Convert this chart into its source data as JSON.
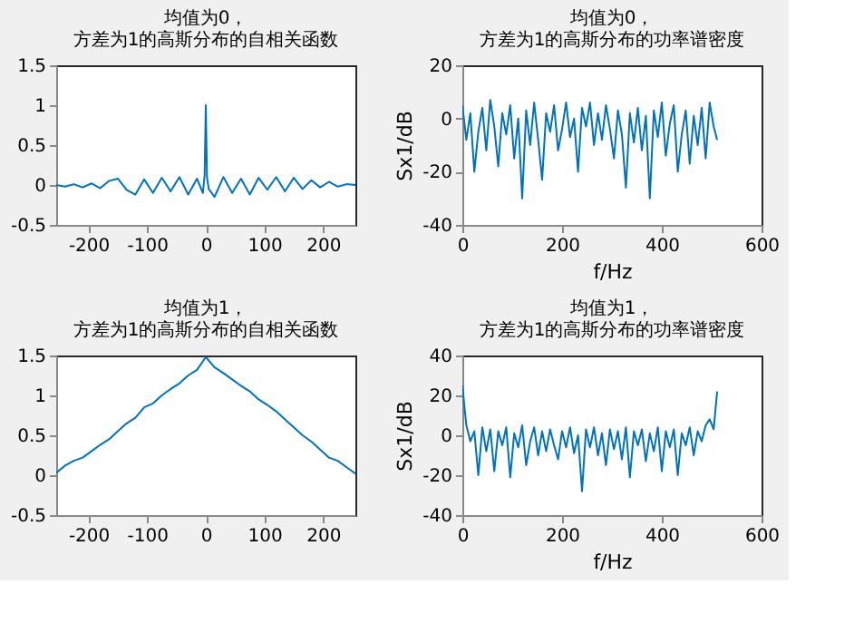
{
  "chart_data": [
    {
      "type": "line",
      "title": "均值为0，方差为1的高斯分布的自相关函数",
      "xlim": [
        -255,
        255
      ],
      "xticks": [
        -200,
        -100,
        0,
        100,
        200
      ],
      "ylim": [
        -0.5,
        1.5
      ],
      "yticks": [
        -0.5,
        0,
        0.5,
        1,
        1.5
      ],
      "grid": false,
      "x": [
        -255,
        -240,
        -225,
        -210,
        -195,
        -180,
        -165,
        -150,
        -135,
        -120,
        -105,
        -90,
        -75,
        -60,
        -45,
        -30,
        -15,
        -5,
        -2,
        0,
        2,
        5,
        15,
        30,
        45,
        60,
        75,
        90,
        105,
        120,
        135,
        150,
        165,
        180,
        195,
        210,
        225,
        240,
        255
      ],
      "series": [
        {
          "color": "#0072bd",
          "values": [
            0,
            -0.02,
            0.01,
            -0.03,
            0.02,
            -0.04,
            0.05,
            0.08,
            -0.06,
            -0.12,
            0.07,
            -0.1,
            0.09,
            -0.08,
            0.1,
            -0.12,
            0.08,
            -0.1,
            0.12,
            1.0,
            0.1,
            -0.05,
            -0.15,
            0.1,
            -0.1,
            0.08,
            -0.12,
            0.09,
            -0.06,
            0.1,
            -0.08,
            0.09,
            -0.05,
            0.06,
            -0.03,
            0.04,
            -0.02,
            0.01,
            0
          ]
        }
      ]
    },
    {
      "type": "line",
      "title": "均值为0，方差为1的高斯分布的功率谱密度",
      "xlabel": "f/Hz",
      "ylabel": "Sx1/dB",
      "xlim": [
        0,
        600
      ],
      "xticks": [
        0,
        200,
        400,
        600
      ],
      "ylim": [
        -40,
        20
      ],
      "yticks": [
        -40,
        -20,
        0,
        20
      ],
      "grid": false,
      "x": [
        0,
        8,
        16,
        24,
        32,
        40,
        48,
        56,
        64,
        72,
        80,
        88,
        96,
        104,
        112,
        120,
        128,
        136,
        144,
        152,
        160,
        168,
        176,
        184,
        192,
        200,
        208,
        216,
        224,
        232,
        240,
        248,
        256,
        264,
        272,
        280,
        288,
        296,
        304,
        312,
        320,
        328,
        336,
        344,
        352,
        360,
        368,
        376,
        384,
        392,
        400,
        408,
        416,
        424,
        432,
        440,
        448,
        456,
        464,
        472,
        480,
        488,
        496,
        504,
        511
      ],
      "series": [
        {
          "color": "#0072bd",
          "values": [
            5,
            -8,
            2,
            -20,
            -5,
            4,
            -12,
            7,
            -3,
            -18,
            2,
            -6,
            5,
            -15,
            0,
            -30,
            3,
            -10,
            6,
            -8,
            -23,
            2,
            -5,
            5,
            -12,
            -4,
            6,
            -7,
            0,
            -20,
            4,
            -3,
            6,
            -10,
            2,
            -8,
            5,
            -4,
            -15,
            3,
            -6,
            -26,
            2,
            -9,
            4,
            -12,
            1,
            -30,
            3,
            -7,
            6,
            -14,
            -2,
            5,
            -20,
            -6,
            3,
            -17,
            1,
            -10,
            4,
            -15,
            6,
            -3,
            -8
          ]
        }
      ]
    },
    {
      "type": "line",
      "title": "均值为1，方差为1的高斯分布的自相关函数",
      "xlim": [
        -255,
        255
      ],
      "xticks": [
        -200,
        -100,
        0,
        100,
        200
      ],
      "ylim": [
        -0.5,
        1.5
      ],
      "yticks": [
        -0.5,
        0,
        0.5,
        1,
        1.5
      ],
      "grid": false,
      "x": [
        -255,
        -240,
        -225,
        -210,
        -195,
        -180,
        -165,
        -150,
        -135,
        -120,
        -105,
        -90,
        -75,
        -60,
        -45,
        -30,
        -15,
        0,
        15,
        30,
        45,
        60,
        75,
        90,
        105,
        120,
        135,
        150,
        165,
        180,
        195,
        210,
        225,
        240,
        255
      ],
      "series": [
        {
          "color": "#0072bd",
          "values": [
            0.03,
            0.12,
            0.18,
            0.22,
            0.3,
            0.38,
            0.45,
            0.55,
            0.65,
            0.72,
            0.85,
            0.9,
            1.0,
            1.08,
            1.15,
            1.25,
            1.32,
            1.48,
            1.35,
            1.28,
            1.2,
            1.12,
            1.05,
            0.95,
            0.88,
            0.8,
            0.7,
            0.6,
            0.5,
            0.42,
            0.32,
            0.22,
            0.18,
            0.1,
            0.02
          ]
        }
      ]
    },
    {
      "type": "line",
      "title": "均值为1，方差为1的高斯分布的功率谱密度",
      "xlabel": "f/Hz",
      "ylabel": "Sx1/dB",
      "xlim": [
        0,
        600
      ],
      "xticks": [
        0,
        200,
        400,
        600
      ],
      "ylim": [
        -40,
        40
      ],
      "yticks": [
        -40,
        -20,
        0,
        20,
        40
      ],
      "grid": false,
      "x": [
        0,
        8,
        16,
        24,
        32,
        40,
        48,
        56,
        64,
        72,
        80,
        88,
        96,
        104,
        112,
        120,
        128,
        136,
        144,
        152,
        160,
        168,
        176,
        184,
        192,
        200,
        208,
        216,
        224,
        232,
        240,
        248,
        256,
        264,
        272,
        280,
        288,
        296,
        304,
        312,
        320,
        328,
        336,
        344,
        352,
        360,
        368,
        376,
        384,
        392,
        400,
        408,
        416,
        424,
        432,
        440,
        448,
        456,
        464,
        472,
        480,
        488,
        496,
        504,
        511
      ],
      "series": [
        {
          "color": "#0072bd",
          "values": [
            25,
            5,
            -3,
            2,
            -20,
            4,
            -8,
            3,
            -18,
            2,
            -5,
            4,
            -21,
            1,
            -6,
            5,
            -15,
            -3,
            4,
            -10,
            2,
            -8,
            3,
            -5,
            -12,
            2,
            -6,
            4,
            -9,
            0,
            -28,
            3,
            -6,
            4,
            -10,
            1,
            -15,
            3,
            -7,
            2,
            -12,
            4,
            -21,
            2,
            -5,
            3,
            -13,
            1,
            -8,
            4,
            -18,
            2,
            -6,
            3,
            -20,
            1,
            -5,
            4,
            -10,
            2,
            -3,
            5,
            8,
            3,
            22
          ]
        }
      ]
    }
  ]
}
